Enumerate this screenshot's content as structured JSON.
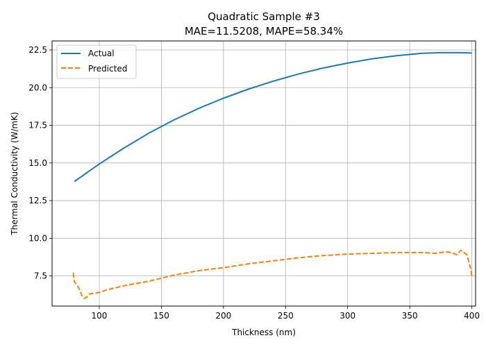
{
  "chart_data": {
    "type": "line",
    "title": "Quadratic Sample #3",
    "subtitle": "MAE=11.5208, MAPE=58.34%",
    "xlabel": "Thickness (nm)",
    "ylabel": "Thermal Conductivity (W/mK)",
    "xlim": [
      62,
      403
    ],
    "ylim": [
      5.5,
      23.1
    ],
    "xticks": [
      100,
      150,
      200,
      250,
      300,
      350,
      400
    ],
    "xtick_labels": [
      "100",
      "150",
      "200",
      "250",
      "300",
      "350",
      "400"
    ],
    "yticks": [
      7.5,
      10.0,
      12.5,
      15.0,
      17.5,
      20.0,
      22.5
    ],
    "ytick_labels": [
      "7.5",
      "10.0",
      "12.5",
      "15.0",
      "17.5",
      "20.0",
      "22.5"
    ],
    "grid": true,
    "legend_position": "top-left",
    "series": [
      {
        "name": "Actual",
        "color": "#1f77b4",
        "style": "solid",
        "x": [
          80,
          100,
          120,
          140,
          160,
          180,
          200,
          220,
          240,
          260,
          280,
          300,
          320,
          340,
          360,
          375,
          390,
          400
        ],
        "y": [
          13.77,
          14.93,
          16.0,
          16.98,
          17.85,
          18.62,
          19.3,
          19.9,
          20.43,
          20.9,
          21.3,
          21.63,
          21.92,
          22.13,
          22.28,
          22.32,
          22.32,
          22.3
        ]
      },
      {
        "name": "Predicted",
        "color": "#ff7f0e",
        "style": "dashed",
        "x": [
          79,
          80,
          82,
          84,
          86,
          88,
          90,
          92,
          95,
          100,
          105,
          110,
          115,
          120,
          130,
          140,
          150,
          160,
          170,
          180,
          190,
          200,
          220,
          240,
          260,
          280,
          300,
          320,
          340,
          350,
          360,
          370,
          375,
          380,
          385,
          388,
          391,
          393,
          396,
          398,
          399,
          400
        ],
        "y": [
          7.7,
          7.1,
          6.9,
          6.6,
          6.2,
          6.0,
          6.1,
          6.3,
          6.35,
          6.4,
          6.55,
          6.65,
          6.75,
          6.85,
          7.0,
          7.15,
          7.35,
          7.55,
          7.7,
          7.85,
          7.95,
          8.05,
          8.3,
          8.5,
          8.7,
          8.85,
          8.95,
          9.0,
          9.05,
          9.05,
          9.05,
          9.0,
          9.05,
          9.1,
          9.0,
          8.9,
          9.2,
          9.1,
          8.9,
          8.3,
          8.0,
          7.5
        ]
      }
    ]
  }
}
